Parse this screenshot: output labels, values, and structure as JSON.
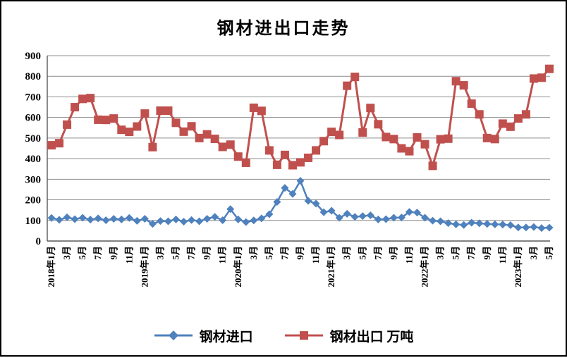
{
  "title": "钢材进出口走势",
  "legend": [
    {
      "name": "钢材进口",
      "marker": "diamond",
      "color": "#4F81BD"
    },
    {
      "name": "钢材出口 万吨",
      "marker": "square",
      "color": "#C0504D"
    }
  ],
  "chart_data": {
    "type": "line",
    "title": "钢材进出口走势",
    "x_start": "2018年1月",
    "x_end": "2023年5月",
    "x_freq": "monthly",
    "x_tick_labels": [
      "2018年1月",
      "3月",
      "5月",
      "7月",
      "9月",
      "11月",
      "2019年1月",
      "3月",
      "5月",
      "7月",
      "9月",
      "11月",
      "2020年1月",
      "3月",
      "5月",
      "7月",
      "9月",
      "11月",
      "2021年1月",
      "3月",
      "5月",
      "7月",
      "9月",
      "11月",
      "2022年1月",
      "3月",
      "5月",
      "7月",
      "9月",
      "11月",
      "2023年1月",
      "3月",
      "5月"
    ],
    "ylim": [
      0,
      900
    ],
    "ytick_step": 100,
    "grid": "horizontal",
    "legend_position": "bottom",
    "series": [
      {
        "name": "钢材进口",
        "marker": "diamond",
        "color": "#4F81BD",
        "values": [
          112,
          103,
          115,
          106,
          113,
          104,
          110,
          101,
          108,
          105,
          112,
          98,
          108,
          83,
          97,
          96,
          105,
          94,
          102,
          96,
          108,
          117,
          101,
          155,
          105,
          92,
          100,
          110,
          130,
          190,
          258,
          229,
          292,
          195,
          182,
          140,
          147,
          113,
          132,
          117,
          121,
          125,
          105,
          106,
          113,
          114,
          141,
          138,
          113,
          99,
          96,
          87,
          81,
          78,
          89,
          86,
          83,
          81,
          80,
          77,
          66,
          66,
          68,
          63,
          65
        ]
      },
      {
        "name": "钢材出口 万吨",
        "marker": "square",
        "color": "#C0504D",
        "values": [
          465,
          475,
          565,
          650,
          690,
          694,
          589,
          588,
          595,
          540,
          530,
          556,
          619,
          456,
          633,
          633,
          574,
          531,
          557,
          500,
          518,
          496,
          457,
          468,
          410,
          380,
          647,
          632,
          440,
          370,
          418,
          368,
          382,
          404,
          440,
          485,
          530,
          515,
          754,
          797,
          527,
          646,
          567,
          505,
          495,
          450,
          436,
          503,
          470,
          365,
          494,
          497,
          776,
          756,
          667,
          615,
          500,
          495,
          570,
          555,
          595,
          615,
          789,
          793,
          836
        ]
      }
    ]
  }
}
